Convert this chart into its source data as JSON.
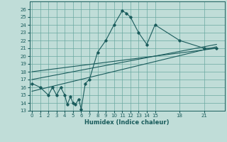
{
  "bg_color": "#c0ddd8",
  "grid_color": "#6aa8a0",
  "line_color": "#1a5c5c",
  "xlabel": "Humidex (Indice chaleur)",
  "xlim": [
    -0.3,
    23.5
  ],
  "ylim": [
    13,
    27
  ],
  "xticks": [
    0,
    1,
    2,
    3,
    4,
    5,
    6,
    7,
    8,
    9,
    10,
    11,
    12,
    13,
    14,
    15,
    18,
    21
  ],
  "yticks": [
    13,
    14,
    15,
    16,
    17,
    18,
    19,
    20,
    21,
    22,
    23,
    24,
    25,
    26
  ],
  "main_x": [
    0,
    1,
    2,
    2.5,
    3,
    3.5,
    4,
    4.3,
    4.7,
    5,
    5.3,
    5.7,
    6,
    6.5,
    7,
    8,
    9,
    10,
    11,
    11.5,
    12,
    13,
    14,
    15,
    18,
    21,
    22.5
  ],
  "main_y": [
    16.5,
    16,
    15,
    16,
    15,
    16,
    15,
    13.8,
    14.8,
    14,
    13.8,
    14.5,
    13.2,
    16.5,
    17,
    20.5,
    22,
    24,
    25.8,
    25.5,
    25,
    23,
    21.5,
    24,
    22,
    21,
    21
  ],
  "line1_x": [
    0,
    22.5
  ],
  "line1_y": [
    15.5,
    21.2
  ],
  "line2_x": [
    0,
    22.5
  ],
  "line2_y": [
    17.0,
    21.5
  ],
  "line3_x": [
    0,
    22.5
  ],
  "line3_y": [
    18.0,
    21.0
  ]
}
